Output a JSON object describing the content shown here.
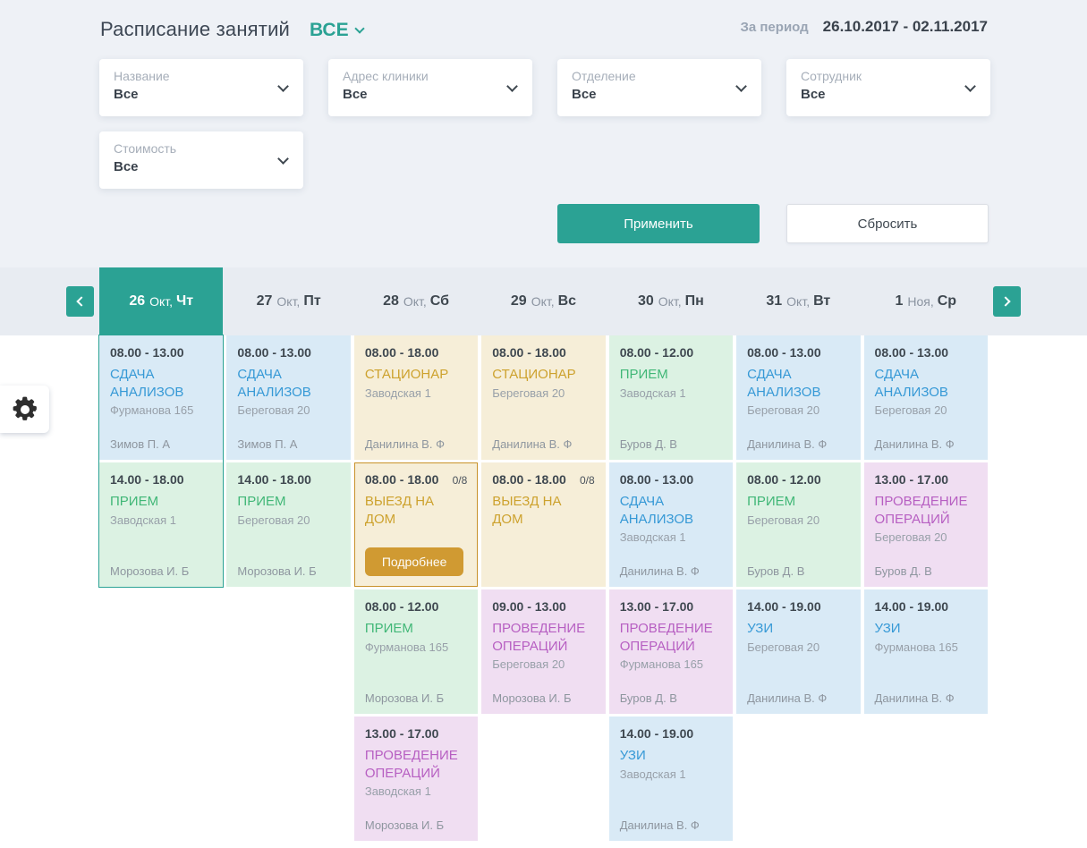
{
  "header": {
    "title": "Расписание занятий",
    "scope": "ВСЕ",
    "period_label": "За период",
    "period_value": "26.10.2017 - 02.11.2017"
  },
  "filters": [
    {
      "label": "Название",
      "value": "Все"
    },
    {
      "label": "Адрес клиники",
      "value": "Все"
    },
    {
      "label": "Отделение",
      "value": "Все"
    },
    {
      "label": "Сотрудник",
      "value": "Все"
    },
    {
      "label": "Стоимость",
      "value": "Все"
    }
  ],
  "actions": {
    "apply_label": "Применить",
    "reset_label": "Сбросить"
  },
  "colors": {
    "accent_teal": "#2ba294",
    "details_button_bg": "#d09a32",
    "highlight_border": "#c8922a",
    "types": {
      "blue": {
        "bg": "#d9eaf6",
        "text": "#3699d6"
      },
      "green": {
        "bg": "#dcf2e3",
        "text": "#41b777"
      },
      "beige": {
        "bg": "#f6eed8",
        "text": "#cda22e"
      },
      "pink": {
        "bg": "#f0def2",
        "text": "#b75fc2"
      }
    }
  },
  "week": {
    "days": [
      {
        "day": "26",
        "month": "Окт",
        "weekday": "Чт",
        "selected": true
      },
      {
        "day": "27",
        "month": "Окт",
        "weekday": "Пт",
        "selected": false
      },
      {
        "day": "28",
        "month": "Окт",
        "weekday": "Сб",
        "selected": false
      },
      {
        "day": "29",
        "month": "Окт",
        "weekday": "Вс",
        "selected": false
      },
      {
        "day": "30",
        "month": "Окт",
        "weekday": "Пн",
        "selected": false
      },
      {
        "day": "31",
        "month": "Окт",
        "weekday": "Вт",
        "selected": false
      },
      {
        "day": "1",
        "month": "Ноя",
        "weekday": "Ср",
        "selected": false
      }
    ]
  },
  "schedule": {
    "columns": [
      {
        "selected": true,
        "events": [
          {
            "type": "blue",
            "time": "08.00 - 13.00",
            "title": "СДАЧА АНАЛИЗОВ",
            "address": "Фурманова 165",
            "employee": "Зимов П. А"
          },
          {
            "type": "green",
            "time": "14.00 - 18.00",
            "title": "ПРИЕМ",
            "address": "Заводская 1",
            "employee": "Морозова И. Б"
          }
        ]
      },
      {
        "selected": false,
        "events": [
          {
            "type": "blue",
            "time": "08.00 - 13.00",
            "title": "СДАЧА АНАЛИЗОВ",
            "address": "Береговая 20",
            "employee": "Зимов П. А"
          },
          {
            "type": "green",
            "time": "14.00 - 18.00",
            "title": "ПРИЕМ",
            "address": "Береговая 20",
            "employee": "Морозова И. Б"
          }
        ]
      },
      {
        "selected": false,
        "events": [
          {
            "type": "beige",
            "time": "08.00 - 18.00",
            "title": "СТАЦИОНАР",
            "address": "Заводская 1",
            "employee": "Данилина В. Ф"
          },
          {
            "type": "beige",
            "time": "08.00 - 18.00",
            "title": "ВЫЕЗД НА ДОМ",
            "badge": "0/8",
            "button": "Подробнее",
            "highlighted": true
          },
          {
            "type": "green",
            "time": "08.00 - 12.00",
            "title": "ПРИЕМ",
            "address": "Фурманова 165",
            "employee": "Морозова И. Б"
          },
          {
            "type": "pink",
            "time": "13.00 - 17.00",
            "title": "ПРОВЕДЕНИЕ ОПЕРАЦИЙ",
            "address": "Заводская 1",
            "employee": "Морозова И. Б"
          }
        ]
      },
      {
        "selected": false,
        "events": [
          {
            "type": "beige",
            "time": "08.00 - 18.00",
            "title": "СТАЦИОНАР",
            "address": "Береговая 20",
            "employee": "Данилина В. Ф"
          },
          {
            "type": "beige",
            "time": "08.00 - 18.00",
            "title": "ВЫЕЗД НА ДОМ",
            "badge": "0/8"
          },
          {
            "type": "pink",
            "time": "09.00 - 13.00",
            "title": "ПРОВЕДЕНИЕ ОПЕРАЦИЙ",
            "address": "Береговая 20",
            "employee": "Морозова И. Б"
          }
        ]
      },
      {
        "selected": false,
        "events": [
          {
            "type": "green",
            "time": "08.00 - 12.00",
            "title": "ПРИЕМ",
            "address": "Заводская 1",
            "employee": "Буров Д. В"
          },
          {
            "type": "blue",
            "time": "08.00 - 13.00",
            "title": "СДАЧА АНАЛИЗОВ",
            "address": "Заводская 1",
            "employee": "Данилина В. Ф"
          },
          {
            "type": "pink",
            "time": "13.00 - 17.00",
            "title": "ПРОВЕДЕНИЕ ОПЕРАЦИЙ",
            "address": "Фурманова 165",
            "employee": "Буров Д. В"
          },
          {
            "type": "blue",
            "time": "14.00 - 19.00",
            "title": "УЗИ",
            "address": "Заводская 1",
            "employee": "Данилина В. Ф"
          }
        ]
      },
      {
        "selected": false,
        "events": [
          {
            "type": "blue",
            "time": "08.00 - 13.00",
            "title": "СДАЧА АНАЛИЗОВ",
            "address": "Береговая 20",
            "employee": "Данилина В. Ф"
          },
          {
            "type": "green",
            "time": "08.00 - 12.00",
            "title": "ПРИЕМ",
            "address": "Береговая 20",
            "employee": "Буров Д. В"
          },
          {
            "type": "blue",
            "time": "14.00 - 19.00",
            "title": "УЗИ",
            "address": "Береговая 20",
            "employee": "Данилина В. Ф"
          }
        ]
      },
      {
        "selected": false,
        "events": [
          {
            "type": "blue",
            "time": "08.00 - 13.00",
            "title": "СДАЧА АНАЛИЗОВ",
            "address": "Береговая 20",
            "employee": "Данилина В. Ф"
          },
          {
            "type": "pink",
            "time": "13.00 - 17.00",
            "title": "ПРОВЕДЕНИЕ ОПЕРАЦИЙ",
            "address": "Береговая 20",
            "employee": "Буров Д. В"
          },
          {
            "type": "blue",
            "time": "14.00 - 19.00",
            "title": "УЗИ",
            "address": "Фурманова 165",
            "employee": "Данилина В. Ф"
          }
        ]
      }
    ]
  }
}
